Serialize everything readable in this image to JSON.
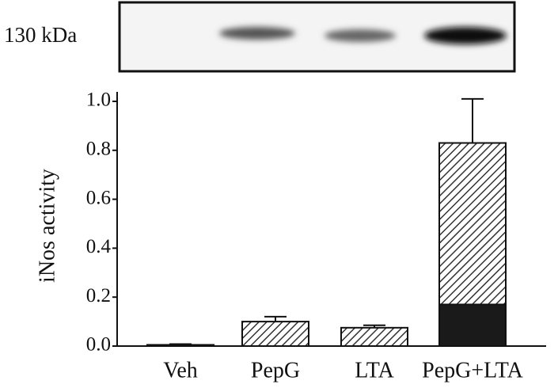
{
  "blot": {
    "label": "130 kDa"
  },
  "chart_data": {
    "type": "bar",
    "ylabel": "iNos activity",
    "categories": [
      "Veh",
      "PepG",
      "LTA",
      "PepG+LTA"
    ],
    "series": [
      {
        "color": "#1a1a1a",
        "hatch": false,
        "values": [
          null,
          null,
          null,
          0.17
        ]
      },
      {
        "color": "#333333",
        "hatch": true,
        "values": [
          0.005,
          0.1,
          0.075,
          0.66
        ]
      }
    ],
    "errors": [
      0.003,
      0.02,
      0.01,
      0.18
    ],
    "ylim": [
      0,
      1.0
    ],
    "yticks": [
      {
        "value": 0,
        "label": "0.0"
      },
      0.2,
      0.4,
      0.6,
      0.8,
      {
        "value": 1.0,
        "label": "1.0"
      }
    ]
  }
}
